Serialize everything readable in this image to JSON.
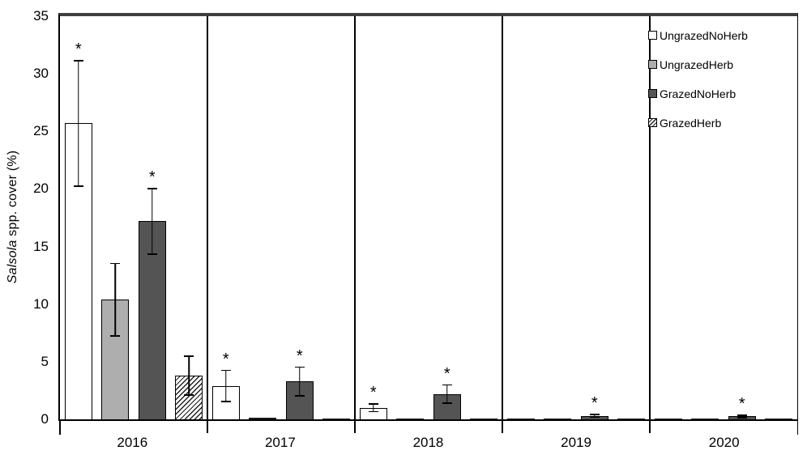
{
  "chart_data": {
    "type": "bar",
    "title": "",
    "ylabel": {
      "italic": "Salsola",
      "rest": " spp. cover (%)"
    },
    "ylim": [
      0,
      35
    ],
    "yticks": [
      0,
      5,
      10,
      15,
      20,
      25,
      30,
      35
    ],
    "categories": [
      "2016",
      "2017",
      "2018",
      "2019",
      "2020"
    ],
    "grid": false,
    "legend_position": "top-right",
    "significance_marker": "*",
    "series": [
      {
        "name": "UngrazedNoHerb",
        "fill": "#ffffff",
        "pattern": "solid",
        "values": [
          25.7,
          2.9,
          1.0,
          0.05,
          0.03
        ],
        "errors": [
          5.5,
          1.4,
          0.4,
          0,
          0
        ],
        "significant": [
          true,
          true,
          true,
          false,
          false
        ]
      },
      {
        "name": "UngrazedHerb",
        "fill": "#aeaeae",
        "pattern": "solid",
        "values": [
          10.4,
          0.12,
          0.08,
          0.05,
          0.04
        ],
        "errors": [
          3.2,
          0,
          0,
          0,
          0
        ],
        "significant": [
          false,
          false,
          false,
          false,
          false
        ]
      },
      {
        "name": "GrazedNoHerb",
        "fill": "#545454",
        "pattern": "solid",
        "values": [
          17.2,
          3.3,
          2.2,
          0.3,
          0.25
        ],
        "errors": [
          2.9,
          1.3,
          0.85,
          0.17,
          0.15
        ],
        "significant": [
          true,
          true,
          true,
          true,
          true
        ]
      },
      {
        "name": "GrazedHerb",
        "fill": "#ffffff",
        "pattern": "hatch",
        "values": [
          3.8,
          0.06,
          0.04,
          0.03,
          0.03
        ],
        "errors": [
          1.75,
          0,
          0,
          0,
          0
        ],
        "significant": [
          false,
          false,
          false,
          false,
          false
        ]
      }
    ],
    "colors": {
      "axis": "#000000",
      "top_border": "#3f3f3f",
      "error_bar": "#000000"
    }
  }
}
